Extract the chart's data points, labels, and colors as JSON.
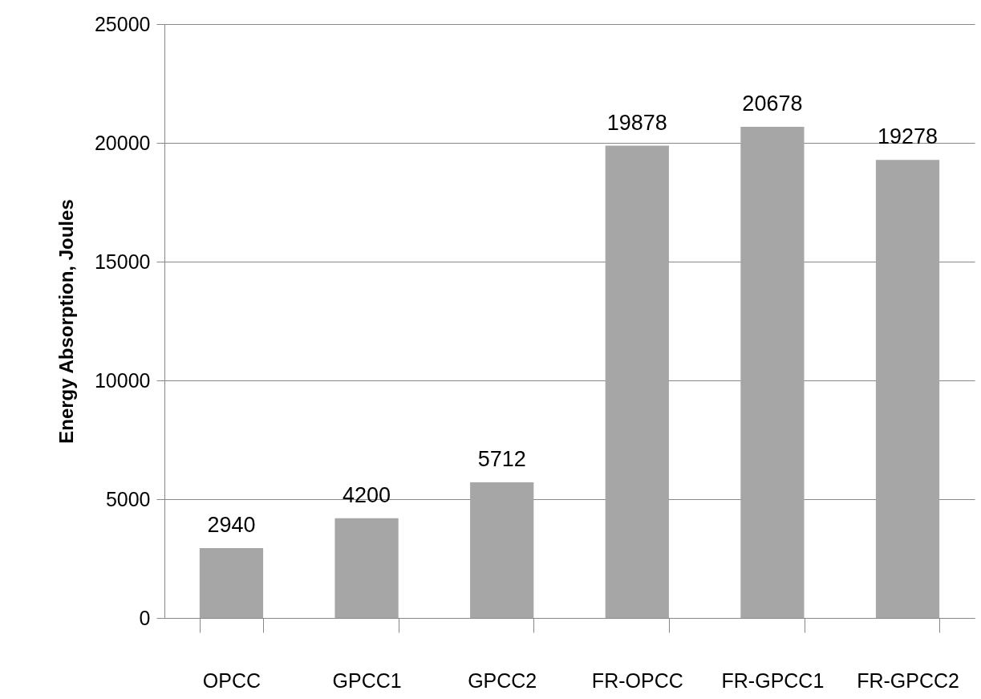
{
  "chart_data": {
    "type": "bar",
    "ylabel": "Energy Absorption, Joules",
    "categories": [
      "OPCC",
      "GPCC1",
      "GPCC2",
      "FR-OPCC",
      "FR-GPCC1",
      "FR-GPCC2"
    ],
    "values": [
      2940,
      4200,
      5712,
      19878,
      20678,
      19278
    ],
    "color": "#a6a6a6",
    "ylim": [
      0,
      25000
    ],
    "yticks": [
      0,
      5000,
      10000,
      15000,
      20000,
      25000
    ],
    "grid": "y",
    "data_labels": true
  }
}
